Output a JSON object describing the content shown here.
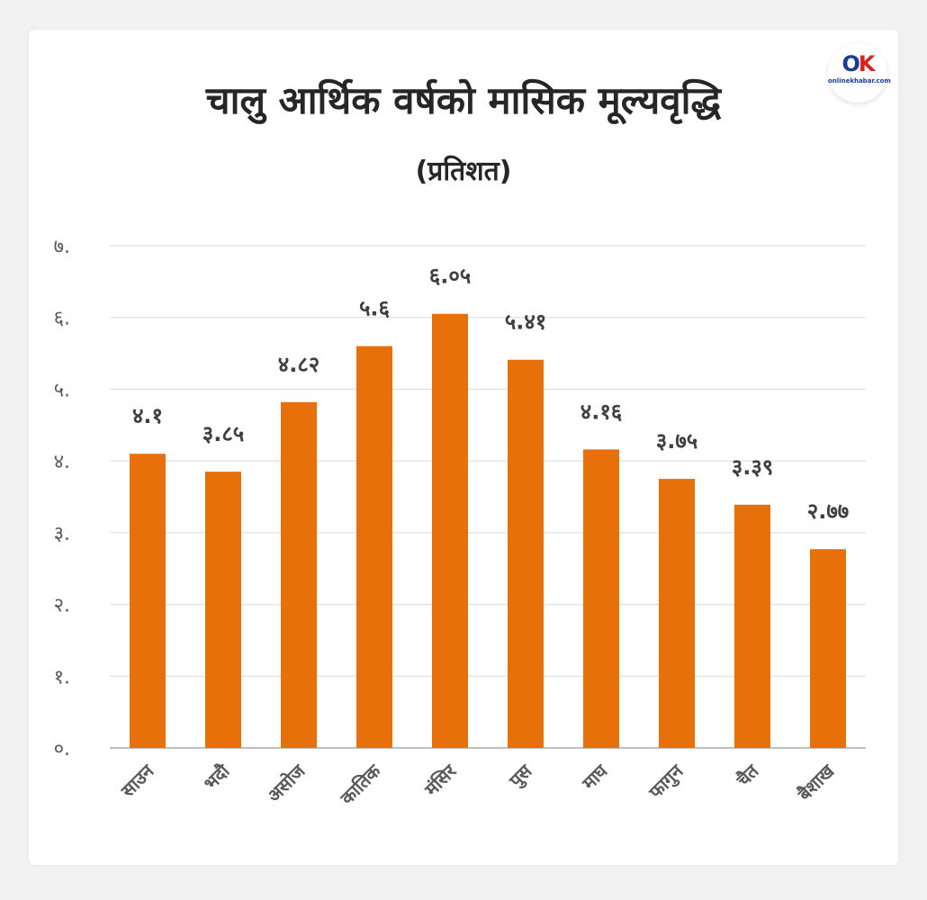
{
  "header": {
    "title": "चालु आर्थिक वर्षको मासिक मूल्यवृद्धि",
    "subtitle": "(प्रतिशत)",
    "logo_text": "onlinekhabar.com",
    "logo_mark_o": "O",
    "logo_mark_k": "K"
  },
  "chart_data": {
    "type": "bar",
    "title": "चालु आर्थिक वर्षको मासिक मूल्यवृद्धि",
    "subtitle": "(प्रतिशत)",
    "categories": [
      "साउन",
      "भदौ",
      "असोज",
      "कातिक",
      "मंसिर",
      "पुस",
      "माघ",
      "फागुन",
      "चैत",
      "बैशाख"
    ],
    "values": [
      4.1,
      3.85,
      4.82,
      5.6,
      6.05,
      5.41,
      4.16,
      3.75,
      3.39,
      2.77
    ],
    "data_labels": [
      "४.१",
      "३.८५",
      "४.८२",
      "५.६",
      "६.०५",
      "५.४१",
      "४.१६",
      "३.७५",
      "३.३९",
      "२.७७"
    ],
    "ylim": [
      0,
      7
    ],
    "yticks": [
      0,
      1,
      2,
      3,
      4,
      5,
      6,
      7
    ],
    "ytick_labels": [
      "०.",
      "१.",
      "२.",
      "३.",
      "४.",
      "५.",
      "६.",
      "७."
    ],
    "grid": true,
    "legend": "none",
    "colors": {
      "bar": "#e8700a",
      "grid": "#d9d9d9",
      "axis": "#bfbfbf"
    }
  }
}
